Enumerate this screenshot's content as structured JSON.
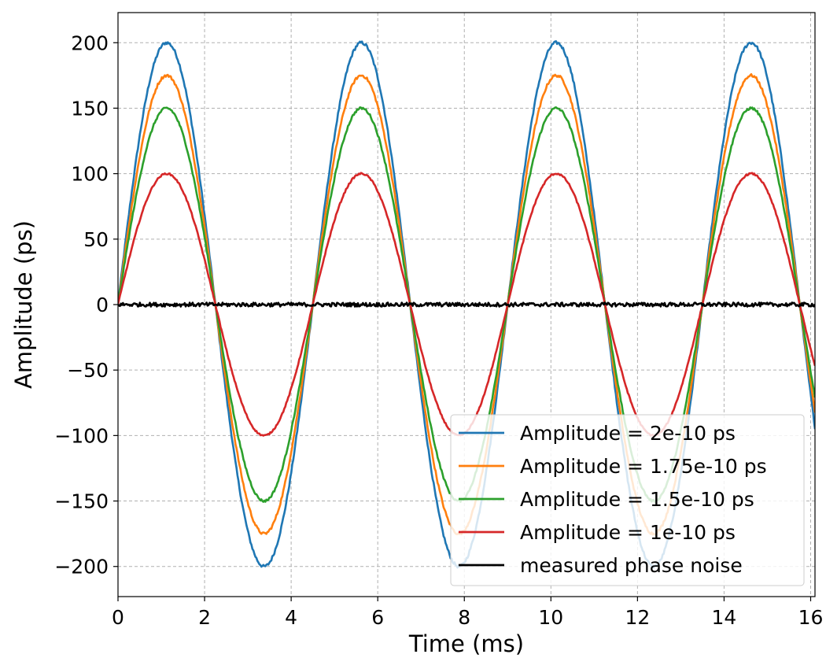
{
  "chart_data": {
    "type": "line",
    "title": "",
    "xlabel": "Time (ms)",
    "ylabel": "Amplitude (ps)",
    "xlim": [
      0,
      16.1
    ],
    "ylim": [
      -223,
      223
    ],
    "xticks": [
      0,
      2,
      4,
      6,
      8,
      10,
      12,
      14,
      16
    ],
    "yticks": [
      200,
      150,
      100,
      50,
      0,
      -50,
      -100,
      -150,
      -200
    ],
    "ytick_labels": [
      "200",
      "150",
      "100",
      "50",
      "0",
      "−50",
      "−100",
      "−150",
      "−200"
    ],
    "grid": true,
    "legend_position": "lower-right",
    "period_ms": 4.5,
    "series": [
      {
        "name": "Amplitude = 2e-10 ps",
        "amplitude": 200,
        "color": "#1f77b4"
      },
      {
        "name": "Amplitude = 1.75e-10 ps",
        "amplitude": 175,
        "color": "#ff7f0e"
      },
      {
        "name": "Amplitude = 1.5e-10 ps",
        "amplitude": 150,
        "color": "#2ca02c"
      },
      {
        "name": "Amplitude = 1e-10 ps",
        "amplitude": 100,
        "color": "#d62728"
      },
      {
        "name": "measured phase noise",
        "amplitude": 0,
        "noise": 1.5,
        "color": "#000000"
      }
    ]
  }
}
